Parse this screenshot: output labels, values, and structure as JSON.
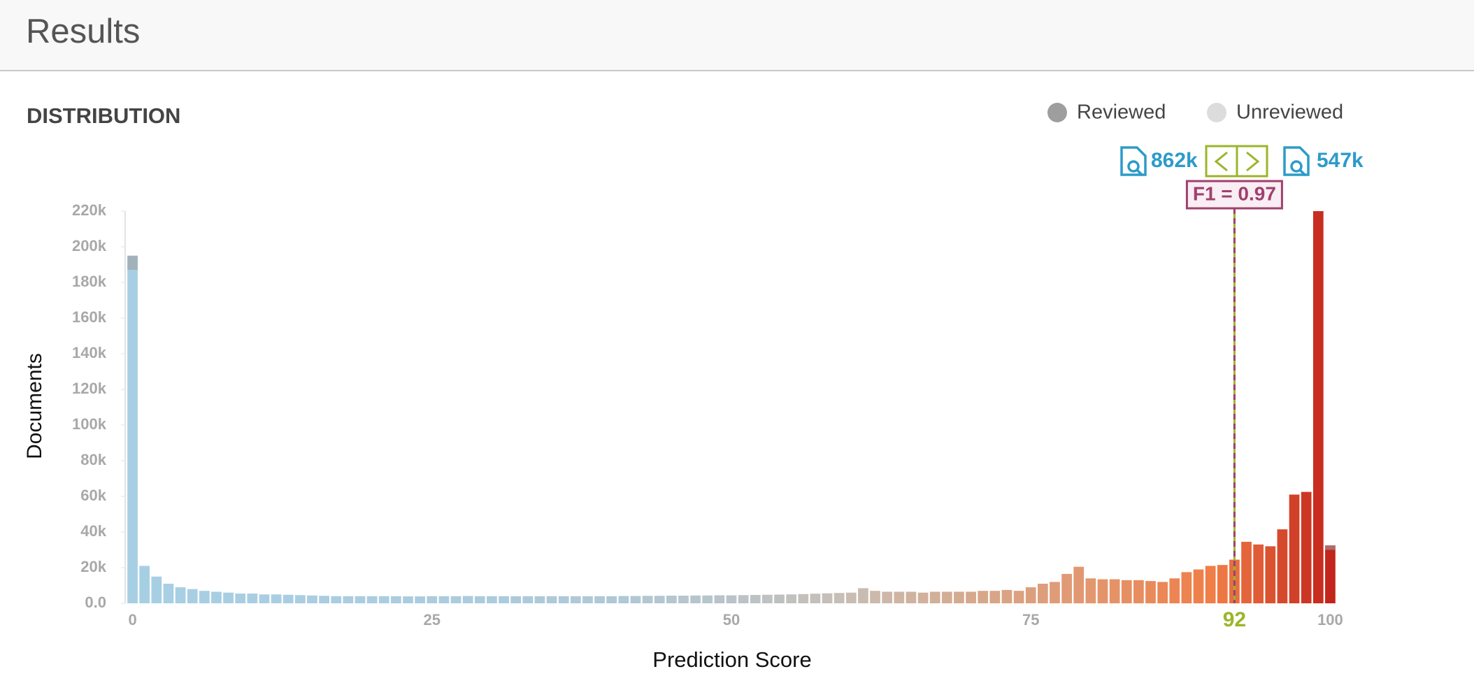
{
  "header": {
    "title": "Results"
  },
  "chart_data": {
    "type": "bar",
    "title": "DISTRIBUTION",
    "ylabel": "Documents",
    "xlabel": "Prediction Score",
    "x": [
      0,
      1,
      2,
      3,
      4,
      5,
      6,
      7,
      8,
      9,
      10,
      11,
      12,
      13,
      14,
      15,
      16,
      17,
      18,
      19,
      20,
      21,
      22,
      23,
      24,
      25,
      26,
      27,
      28,
      29,
      30,
      31,
      32,
      33,
      34,
      35,
      36,
      37,
      38,
      39,
      40,
      41,
      42,
      43,
      44,
      45,
      46,
      47,
      48,
      49,
      50,
      51,
      52,
      53,
      54,
      55,
      56,
      57,
      58,
      59,
      60,
      61,
      62,
      63,
      64,
      65,
      66,
      67,
      68,
      69,
      70,
      71,
      72,
      73,
      74,
      75,
      76,
      77,
      78,
      79,
      80,
      81,
      82,
      83,
      84,
      85,
      86,
      87,
      88,
      89,
      90,
      91,
      92,
      93,
      94,
      95,
      96,
      97,
      98,
      99,
      100
    ],
    "series": [
      {
        "name": "Reviewed",
        "color": "#9e9e9e",
        "values": [
          8000,
          0,
          0,
          0,
          0,
          0,
          0,
          0,
          0,
          0,
          0,
          0,
          0,
          0,
          0,
          0,
          0,
          0,
          0,
          0,
          0,
          0,
          0,
          0,
          0,
          0,
          0,
          0,
          0,
          0,
          0,
          0,
          0,
          0,
          0,
          0,
          0,
          0,
          0,
          0,
          0,
          0,
          0,
          0,
          0,
          0,
          0,
          0,
          0,
          0,
          0,
          0,
          0,
          0,
          0,
          0,
          0,
          0,
          0,
          0,
          0,
          0,
          0,
          0,
          0,
          0,
          0,
          0,
          0,
          0,
          0,
          0,
          0,
          0,
          0,
          0,
          0,
          0,
          0,
          0,
          0,
          0,
          0,
          0,
          0,
          0,
          0,
          0,
          0,
          0,
          0,
          0,
          0,
          0,
          0,
          0,
          0,
          0,
          0,
          0,
          2500
        ]
      },
      {
        "name": "Unreviewed",
        "color": "#dcdcdc",
        "values": [
          187000,
          21000,
          15000,
          11000,
          9000,
          8000,
          7000,
          6500,
          6000,
          5500,
          5500,
          5000,
          5000,
          4800,
          4600,
          4400,
          4200,
          4000,
          4000,
          4000,
          4000,
          4000,
          4000,
          3900,
          3900,
          4000,
          4000,
          4000,
          4100,
          4000,
          4000,
          4000,
          4000,
          4000,
          4000,
          4000,
          4000,
          4000,
          4000,
          4000,
          4000,
          4100,
          4100,
          4200,
          4200,
          4300,
          4300,
          4400,
          4400,
          4500,
          4500,
          4600,
          4700,
          4800,
          4900,
          5000,
          5200,
          5400,
          5600,
          5800,
          6000,
          8500,
          7000,
          6500,
          6500,
          6500,
          6000,
          6500,
          6500,
          6500,
          6500,
          7000,
          7000,
          7500,
          7000,
          9000,
          11000,
          12000,
          16500,
          20500,
          14000,
          13500,
          13500,
          13000,
          13000,
          12500,
          12000,
          14000,
          17500,
          19000,
          21000,
          21500,
          24500,
          34500,
          33000,
          32000,
          41500,
          61000,
          62500,
          220000,
          30000
        ]
      }
    ],
    "color_scale": [
      "#a7cfe4",
      "#a9cee2",
      "#abcde0",
      "#accbdd",
      "#b0c8d6",
      "#b9c4c9",
      "#c9bdb3",
      "#d6a88c",
      "#e3966e",
      "#f07d45",
      "#c0201a"
    ],
    "xlim": [
      -0.5,
      100.5
    ],
    "ylim": [
      0,
      220000
    ],
    "xticks": [
      0,
      25,
      50,
      75,
      100
    ],
    "yticks": [
      {
        "value": 0,
        "label": "0.0"
      },
      {
        "value": 20000,
        "label": "20k"
      },
      {
        "value": 40000,
        "label": "40k"
      },
      {
        "value": 60000,
        "label": "60k"
      },
      {
        "value": 80000,
        "label": "80k"
      },
      {
        "value": 100000,
        "label": "100k"
      },
      {
        "value": 120000,
        "label": "120k"
      },
      {
        "value": 140000,
        "label": "140k"
      },
      {
        "value": 160000,
        "label": "160k"
      },
      {
        "value": 180000,
        "label": "180k"
      },
      {
        "value": 200000,
        "label": "200k"
      },
      {
        "value": 220000,
        "label": "220k"
      }
    ],
    "threshold": {
      "value": 92,
      "label": "92",
      "metric": "F1 = 0.97",
      "below_count": "862k",
      "above_count": "547k"
    }
  }
}
